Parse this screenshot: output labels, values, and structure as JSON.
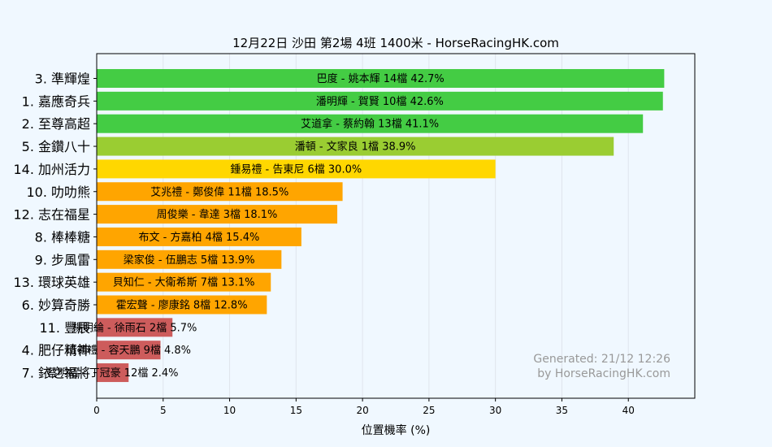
{
  "chart_data": {
    "type": "bar",
    "orientation": "horizontal",
    "title": "12月22日  沙田  第2場  4班  1400米 - HorseRacingHK.com",
    "xlabel": "位置機率 (%)",
    "ylabel": "",
    "xlim": [
      0,
      45
    ],
    "xticks": [
      0,
      5,
      10,
      15,
      20,
      25,
      30,
      35,
      40
    ],
    "grid": true,
    "categories": [
      "3. 準輝煌",
      "1. 嘉應奇兵",
      "2. 至尊高超",
      "5. 金鑽八十",
      "14. 加州活力",
      "10. 叻叻熊",
      "12. 志在福星",
      "8. 棒棒糖",
      "9. 步風雷",
      "13. 環球英雄",
      "6. 妙算奇勝",
      "11. 豐辰",
      "4. 肥仔精神",
      "7. 銥之福將"
    ],
    "values": [
      42.7,
      42.6,
      41.1,
      38.9,
      30.0,
      18.5,
      18.1,
      15.4,
      13.9,
      13.1,
      12.8,
      5.7,
      4.8,
      2.4
    ],
    "labels": [
      "巴度 - 姚本輝 14檔  42.7%",
      "潘明輝 - 賀賢 10檔  42.6%",
      "艾道拿 - 蔡約翰 13檔  41.1%",
      "潘頓 - 文家良 1檔  38.9%",
      "鍾易禮 - 告東尼 6檔  30.0%",
      "艾兆禮 - 鄭俊偉 11檔  18.5%",
      "周俊樂 - 韋達 3檔  18.1%",
      "布文 - 方嘉柏 4檔  15.4%",
      "梁家俊 - 伍鵬志 5檔  13.9%",
      "貝知仁 - 大衛希斯 7檔  13.1%",
      "霍宏聲 - 廖康銘 8檔  12.8%",
      "楊明綸 - 徐雨石 2檔  5.7%",
      "班德禮 - 容天鵬 9檔  4.8%",
      "蔡明紹 - 丁冠豪 12檔  2.4%"
    ],
    "colors": [
      "#44cc44",
      "#44cc44",
      "#44cc44",
      "#9acd32",
      "#ffd700",
      "#ffa500",
      "#ffa500",
      "#ffa500",
      "#ffa500",
      "#ffa500",
      "#ffa500",
      "#cd5c5c",
      "#cd5c5c",
      "#cd5c5c"
    ],
    "annotation": [
      "Generated: 21/12 12:26",
      "by HorseRacingHK.com"
    ]
  },
  "colors": {
    "background": "#f0f8ff",
    "grid": "#dfe5ec",
    "axis": "#000000",
    "annotation": "#999999"
  }
}
